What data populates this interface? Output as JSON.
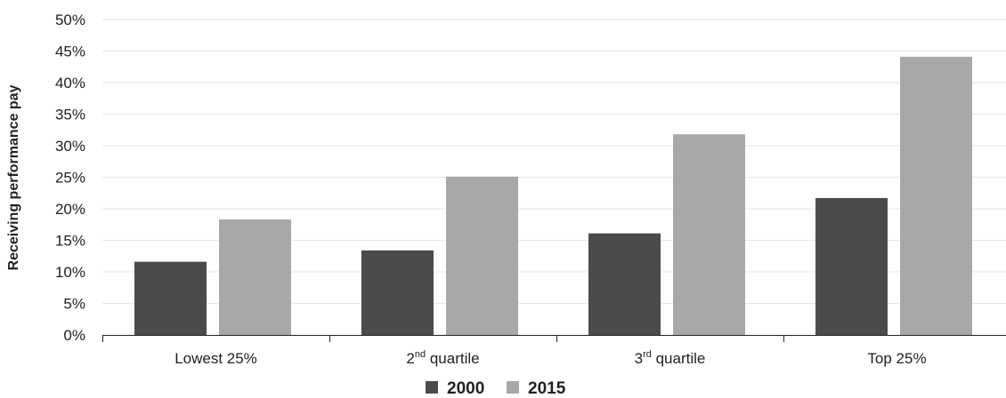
{
  "chart_data": {
    "type": "bar",
    "categories": [
      {
        "base": "Lowest 25%",
        "sup": ""
      },
      {
        "base": "2",
        "sup": "nd",
        "rest": " quartile"
      },
      {
        "base": "3",
        "sup": "rd",
        "rest": " quartile"
      },
      {
        "base": "Top 25%",
        "sup": ""
      }
    ],
    "series": [
      {
        "name": "2000",
        "color": "#4a4b4d",
        "values": [
          11.6,
          13.4,
          16.1,
          21.7
        ]
      },
      {
        "name": "2015",
        "color": "#a7a8aa",
        "values": [
          18.3,
          25.1,
          31.8,
          44.1
        ]
      }
    ],
    "title": "",
    "xlabel": "",
    "ylabel": "Receiving performance pay",
    "ylim": [
      0,
      50
    ],
    "yticks": [
      "0%",
      "5%",
      "10%",
      "15%",
      "20%",
      "25%",
      "30%",
      "35%",
      "40%",
      "45%",
      "50%"
    ],
    "grid": true,
    "legend_position": "bottom"
  }
}
